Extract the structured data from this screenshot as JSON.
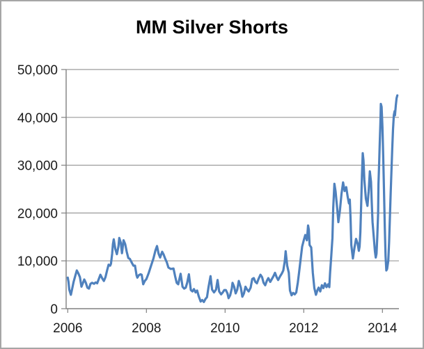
{
  "chart_data": {
    "type": "line",
    "title": "MM Silver Shorts",
    "xlabel": "",
    "ylabel": "",
    "xlim": [
      2005.96,
      2014.42
    ],
    "ylim": [
      0,
      50000
    ],
    "grid": "horizontal",
    "legend": "none",
    "grid_color": "#9a9a9a",
    "axis_color": "#808080",
    "y_ticks": [
      {
        "value": 0,
        "label": "0"
      },
      {
        "value": 10000,
        "label": "10,000"
      },
      {
        "value": 20000,
        "label": "20,000"
      },
      {
        "value": 30000,
        "label": "30,000"
      },
      {
        "value": 40000,
        "label": "40,000"
      },
      {
        "value": 50000,
        "label": "50,000"
      }
    ],
    "x_ticks": [
      {
        "value": 2006,
        "label": "2006"
      },
      {
        "value": 2008,
        "label": "2008"
      },
      {
        "value": 2010,
        "label": "2010"
      },
      {
        "value": 2012,
        "label": "2012"
      },
      {
        "value": 2014,
        "label": "2014"
      }
    ],
    "series": [
      {
        "name": "MM Silver Shorts",
        "color": "#4f81bd",
        "points": [
          [
            2006.0,
            6500
          ],
          [
            2006.02,
            5600
          ],
          [
            2006.04,
            4000
          ],
          [
            2006.08,
            2900
          ],
          [
            2006.12,
            4400
          ],
          [
            2006.15,
            5600
          ],
          [
            2006.19,
            6800
          ],
          [
            2006.23,
            8000
          ],
          [
            2006.27,
            7400
          ],
          [
            2006.31,
            6600
          ],
          [
            2006.35,
            4600
          ],
          [
            2006.38,
            5200
          ],
          [
            2006.42,
            6100
          ],
          [
            2006.46,
            5400
          ],
          [
            2006.5,
            4400
          ],
          [
            2006.54,
            4200
          ],
          [
            2006.58,
            5200
          ],
          [
            2006.62,
            5400
          ],
          [
            2006.67,
            5200
          ],
          [
            2006.71,
            5500
          ],
          [
            2006.75,
            5300
          ],
          [
            2006.79,
            6200
          ],
          [
            2006.83,
            7100
          ],
          [
            2006.88,
            6300
          ],
          [
            2006.92,
            5800
          ],
          [
            2006.96,
            6600
          ],
          [
            2007.0,
            8000
          ],
          [
            2007.04,
            9200
          ],
          [
            2007.08,
            9000
          ],
          [
            2007.1,
            9400
          ],
          [
            2007.13,
            11500
          ],
          [
            2007.15,
            13500
          ],
          [
            2007.17,
            14500
          ],
          [
            2007.21,
            12500
          ],
          [
            2007.25,
            11400
          ],
          [
            2007.29,
            13000
          ],
          [
            2007.31,
            14800
          ],
          [
            2007.35,
            13800
          ],
          [
            2007.38,
            11600
          ],
          [
            2007.42,
            14300
          ],
          [
            2007.46,
            13500
          ],
          [
            2007.5,
            11900
          ],
          [
            2007.54,
            10600
          ],
          [
            2007.58,
            10400
          ],
          [
            2007.63,
            9600
          ],
          [
            2007.67,
            9000
          ],
          [
            2007.71,
            9000
          ],
          [
            2007.75,
            7000
          ],
          [
            2007.77,
            6500
          ],
          [
            2007.81,
            7000
          ],
          [
            2007.85,
            7200
          ],
          [
            2007.88,
            7100
          ],
          [
            2007.92,
            5100
          ],
          [
            2007.96,
            5800
          ],
          [
            2008.0,
            6200
          ],
          [
            2008.06,
            7500
          ],
          [
            2008.12,
            9000
          ],
          [
            2008.18,
            10500
          ],
          [
            2008.23,
            12200
          ],
          [
            2008.27,
            13100
          ],
          [
            2008.31,
            11500
          ],
          [
            2008.35,
            10700
          ],
          [
            2008.4,
            11900
          ],
          [
            2008.44,
            11300
          ],
          [
            2008.48,
            10400
          ],
          [
            2008.52,
            9700
          ],
          [
            2008.56,
            8600
          ],
          [
            2008.62,
            8300
          ],
          [
            2008.69,
            8400
          ],
          [
            2008.73,
            6800
          ],
          [
            2008.77,
            5400
          ],
          [
            2008.81,
            5100
          ],
          [
            2008.87,
            7300
          ],
          [
            2008.92,
            4600
          ],
          [
            2008.96,
            4200
          ],
          [
            2009.0,
            4400
          ],
          [
            2009.04,
            5500
          ],
          [
            2009.08,
            7200
          ],
          [
            2009.13,
            3900
          ],
          [
            2009.17,
            3600
          ],
          [
            2009.21,
            4100
          ],
          [
            2009.25,
            3400
          ],
          [
            2009.29,
            3800
          ],
          [
            2009.33,
            2600
          ],
          [
            2009.38,
            1500
          ],
          [
            2009.42,
            1800
          ],
          [
            2009.46,
            1400
          ],
          [
            2009.5,
            2000
          ],
          [
            2009.54,
            2400
          ],
          [
            2009.58,
            4500
          ],
          [
            2009.63,
            6800
          ],
          [
            2009.67,
            4000
          ],
          [
            2009.72,
            3400
          ],
          [
            2009.77,
            4000
          ],
          [
            2009.81,
            6000
          ],
          [
            2009.85,
            3600
          ],
          [
            2009.9,
            3000
          ],
          [
            2009.94,
            3400
          ],
          [
            2009.98,
            3900
          ],
          [
            2010.02,
            3900
          ],
          [
            2010.06,
            3200
          ],
          [
            2010.09,
            2200
          ],
          [
            2010.13,
            2800
          ],
          [
            2010.17,
            4200
          ],
          [
            2010.19,
            5400
          ],
          [
            2010.23,
            4600
          ],
          [
            2010.27,
            3200
          ],
          [
            2010.31,
            4000
          ],
          [
            2010.35,
            5800
          ],
          [
            2010.4,
            4400
          ],
          [
            2010.44,
            2500
          ],
          [
            2010.48,
            3200
          ],
          [
            2010.52,
            4600
          ],
          [
            2010.56,
            4000
          ],
          [
            2010.6,
            3600
          ],
          [
            2010.65,
            4400
          ],
          [
            2010.69,
            6200
          ],
          [
            2010.73,
            6400
          ],
          [
            2010.77,
            5600
          ],
          [
            2010.81,
            5300
          ],
          [
            2010.85,
            6200
          ],
          [
            2010.9,
            7100
          ],
          [
            2010.94,
            6600
          ],
          [
            2010.98,
            5400
          ],
          [
            2011.02,
            4900
          ],
          [
            2011.06,
            5800
          ],
          [
            2011.1,
            6400
          ],
          [
            2011.15,
            5600
          ],
          [
            2011.19,
            6200
          ],
          [
            2011.23,
            6800
          ],
          [
            2011.27,
            7500
          ],
          [
            2011.31,
            6600
          ],
          [
            2011.35,
            6000
          ],
          [
            2011.4,
            6800
          ],
          [
            2011.44,
            7300
          ],
          [
            2011.48,
            8000
          ],
          [
            2011.52,
            10000
          ],
          [
            2011.54,
            12000
          ],
          [
            2011.58,
            9000
          ],
          [
            2011.62,
            7500
          ],
          [
            2011.65,
            3800
          ],
          [
            2011.69,
            2800
          ],
          [
            2011.73,
            3300
          ],
          [
            2011.77,
            3000
          ],
          [
            2011.81,
            3400
          ],
          [
            2011.85,
            5500
          ],
          [
            2011.88,
            7500
          ],
          [
            2011.92,
            10200
          ],
          [
            2011.96,
            13000
          ],
          [
            2012.0,
            14300
          ],
          [
            2012.04,
            15400
          ],
          [
            2012.08,
            14300
          ],
          [
            2012.11,
            17400
          ],
          [
            2012.13,
            16500
          ],
          [
            2012.15,
            13300
          ],
          [
            2012.19,
            12800
          ],
          [
            2012.23,
            7500
          ],
          [
            2012.27,
            4300
          ],
          [
            2012.31,
            2900
          ],
          [
            2012.35,
            3900
          ],
          [
            2012.38,
            4400
          ],
          [
            2012.42,
            3600
          ],
          [
            2012.46,
            4900
          ],
          [
            2012.5,
            4300
          ],
          [
            2012.54,
            5300
          ],
          [
            2012.58,
            4500
          ],
          [
            2012.62,
            5100
          ],
          [
            2012.65,
            4500
          ],
          [
            2012.67,
            7500
          ],
          [
            2012.7,
            11000
          ],
          [
            2012.73,
            14800
          ],
          [
            2012.75,
            21000
          ],
          [
            2012.78,
            26100
          ],
          [
            2012.81,
            24500
          ],
          [
            2012.85,
            21000
          ],
          [
            2012.88,
            18100
          ],
          [
            2012.92,
            20500
          ],
          [
            2012.96,
            24000
          ],
          [
            2013.0,
            26400
          ],
          [
            2013.04,
            24600
          ],
          [
            2013.08,
            25400
          ],
          [
            2013.12,
            23300
          ],
          [
            2013.15,
            22000
          ],
          [
            2013.17,
            22800
          ],
          [
            2013.19,
            19000
          ],
          [
            2013.21,
            13300
          ],
          [
            2013.25,
            10500
          ],
          [
            2013.29,
            12800
          ],
          [
            2013.33,
            14600
          ],
          [
            2013.37,
            13600
          ],
          [
            2013.4,
            12100
          ],
          [
            2013.42,
            13000
          ],
          [
            2013.44,
            16000
          ],
          [
            2013.46,
            22000
          ],
          [
            2013.48,
            28000
          ],
          [
            2013.5,
            32500
          ],
          [
            2013.52,
            31000
          ],
          [
            2013.54,
            27000
          ],
          [
            2013.58,
            23000
          ],
          [
            2013.62,
            21500
          ],
          [
            2013.65,
            24500
          ],
          [
            2013.68,
            28700
          ],
          [
            2013.71,
            26500
          ],
          [
            2013.73,
            22000
          ],
          [
            2013.75,
            18100
          ],
          [
            2013.79,
            14000
          ],
          [
            2013.81,
            12000
          ],
          [
            2013.83,
            10700
          ],
          [
            2013.85,
            11500
          ],
          [
            2013.87,
            15000
          ],
          [
            2013.89,
            20000
          ],
          [
            2013.9,
            26000
          ],
          [
            2013.92,
            31000
          ],
          [
            2013.93,
            34000
          ],
          [
            2013.95,
            39000
          ],
          [
            2013.96,
            42800
          ],
          [
            2013.98,
            42200
          ],
          [
            2014.0,
            38000
          ],
          [
            2014.02,
            32000
          ],
          [
            2014.04,
            25000
          ],
          [
            2014.06,
            17000
          ],
          [
            2014.08,
            11000
          ],
          [
            2014.1,
            8000
          ],
          [
            2014.12,
            8300
          ],
          [
            2014.15,
            10000
          ],
          [
            2014.17,
            14000
          ],
          [
            2014.19,
            19000
          ],
          [
            2014.21,
            24000
          ],
          [
            2014.23,
            29000
          ],
          [
            2014.25,
            33500
          ],
          [
            2014.27,
            37500
          ],
          [
            2014.29,
            40500
          ],
          [
            2014.31,
            41300
          ],
          [
            2014.32,
            40400
          ],
          [
            2014.34,
            42500
          ],
          [
            2014.36,
            44000
          ],
          [
            2014.38,
            44600
          ]
        ]
      }
    ]
  }
}
